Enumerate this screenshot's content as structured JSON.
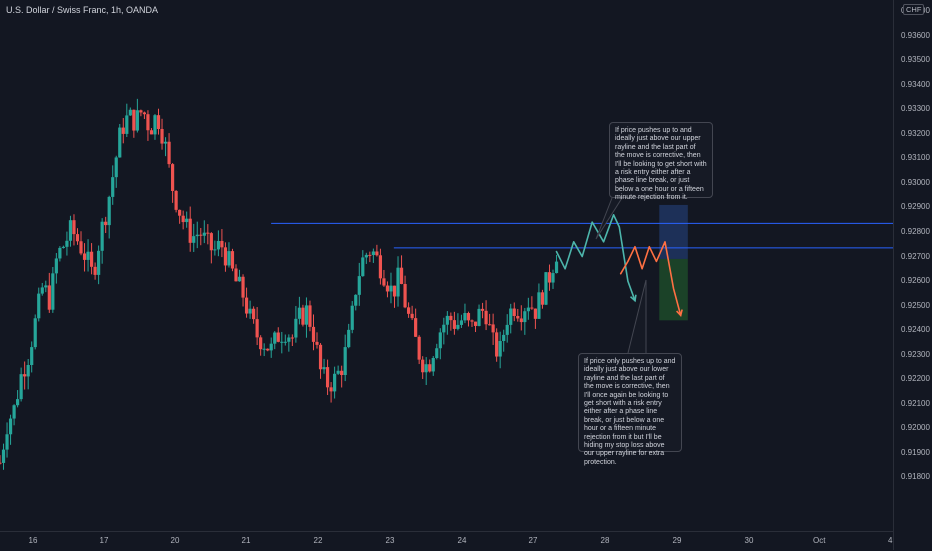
{
  "header": {
    "symbol_title": "U.S. Dollar / Swiss Franc, 1h, OANDA",
    "currency": "CHF"
  },
  "price_axis": {
    "labels": [
      "0.93700",
      "0.93600",
      "0.93500",
      "0.93400",
      "0.93300",
      "0.93200",
      "0.93100",
      "0.93000",
      "0.92900",
      "0.92800",
      "0.92700",
      "0.92600",
      "0.92500",
      "0.92400",
      "0.92300",
      "0.92200",
      "0.92100",
      "0.92000",
      "0.91900",
      "0.91800"
    ]
  },
  "time_axis": {
    "labels": [
      "16",
      "17",
      "20",
      "21",
      "22",
      "23",
      "24",
      "27",
      "28",
      "29",
      "30",
      "Oct",
      "4"
    ]
  },
  "annotations": {
    "upper_scenario": "If price pushes up to and ideally just above our upper rayline and the last part of the move is corrective, then I'll be looking to get short with a risk entry either after a phase line break, or just below a one hour or a fifteen minute rejection from it.",
    "lower_scenario": "If price only pushes up to and ideally just above our lower rayline and the last part of the move is corrective, then I'll once again be looking to get short with a risk entry either after a phase line break, or just below a one hour or a fifteen minute rejection from it but I'll be hiding my stop loss above our upper rayline for extra protection."
  },
  "colors": {
    "background": "#131722",
    "up_candle": "#26a69a",
    "down_candle": "#ef5350",
    "rayline": "#2962ff",
    "projection_upper": "#4db6ac",
    "projection_lower": "#ff7043",
    "stop_zone": "#223a6b",
    "target_zone": "#1e4d2b"
  },
  "chart_data": {
    "type": "candlestick",
    "title": "U.S. Dollar / Swiss Franc, 1h, OANDA",
    "xlabel": "",
    "ylabel": "",
    "ylim": [
      0.9175,
      0.9373
    ],
    "close_path": [
      [
        0,
        0.9186
      ],
      [
        0.5,
        0.9202
      ],
      [
        1.0,
        0.9208
      ],
      [
        1.5,
        0.9222
      ],
      [
        2.0,
        0.923
      ],
      [
        2.5,
        0.9244
      ],
      [
        3.0,
        0.9258
      ],
      [
        3.5,
        0.9252
      ],
      [
        4.0,
        0.927
      ],
      [
        4.5,
        0.9275
      ],
      [
        5.0,
        0.9281
      ],
      [
        5.5,
        0.9276
      ],
      [
        6.0,
        0.927
      ],
      [
        6.5,
        0.9262
      ],
      [
        7.0,
        0.9278
      ],
      [
        7.5,
        0.929
      ],
      [
        8.0,
        0.9306
      ],
      [
        8.5,
        0.9322
      ],
      [
        9.0,
        0.9327
      ],
      [
        9.5,
        0.9325
      ],
      [
        10.0,
        0.933
      ],
      [
        10.5,
        0.9322
      ],
      [
        11.0,
        0.9328
      ],
      [
        11.5,
        0.9318
      ],
      [
        12.0,
        0.93
      ],
      [
        12.5,
        0.929
      ],
      [
        13.0,
        0.9282
      ],
      [
        13.5,
        0.9278
      ],
      [
        14.0,
        0.928
      ],
      [
        14.5,
        0.9275
      ],
      [
        15.0,
        0.9272
      ],
      [
        15.5,
        0.9275
      ],
      [
        16.0,
        0.9268
      ],
      [
        16.5,
        0.926
      ],
      [
        17.0,
        0.9255
      ],
      [
        17.5,
        0.9245
      ],
      [
        18.0,
        0.9238
      ],
      [
        18.5,
        0.9235
      ],
      [
        19.0,
        0.9232
      ],
      [
        19.5,
        0.9238
      ],
      [
        20.0,
        0.924
      ],
      [
        20.5,
        0.9237
      ],
      [
        21.0,
        0.9245
      ],
      [
        21.5,
        0.9248
      ],
      [
        22.0,
        0.9238
      ],
      [
        22.5,
        0.9222
      ],
      [
        23.0,
        0.9218
      ],
      [
        23.5,
        0.922
      ],
      [
        24.0,
        0.9226
      ],
      [
        24.5,
        0.9238
      ],
      [
        25.0,
        0.926
      ],
      [
        25.5,
        0.927
      ],
      [
        26.0,
        0.9273
      ],
      [
        26.5,
        0.9268
      ],
      [
        27.0,
        0.9262
      ],
      [
        27.5,
        0.9255
      ],
      [
        28.0,
        0.9262
      ],
      [
        28.5,
        0.9248
      ],
      [
        29.0,
        0.9238
      ],
      [
        29.5,
        0.9228
      ],
      [
        30.0,
        0.9225
      ],
      [
        30.5,
        0.9235
      ],
      [
        31.0,
        0.9242
      ],
      [
        31.5,
        0.9245
      ],
      [
        32.0,
        0.9242
      ],
      [
        32.5,
        0.9245
      ],
      [
        33.0,
        0.924
      ],
      [
        33.5,
        0.9246
      ],
      [
        34.0,
        0.9249
      ],
      [
        34.5,
        0.9235
      ],
      [
        35.0,
        0.923
      ],
      [
        35.5,
        0.9245
      ],
      [
        36.0,
        0.925
      ],
      [
        36.5,
        0.9248
      ],
      [
        37.0,
        0.9252
      ],
      [
        37.5,
        0.9248
      ],
      [
        38.0,
        0.9255
      ],
      [
        38.5,
        0.9262
      ],
      [
        39.0,
        0.9272
      ]
    ],
    "raylines": [
      {
        "price": 0.92835,
        "start_x": 19.0
      },
      {
        "price": 0.92735,
        "start_x": 27.6
      }
    ],
    "projection_upper": [
      [
        39.0,
        0.9272
      ],
      [
        39.6,
        0.9265
      ],
      [
        40.2,
        0.9276
      ],
      [
        40.8,
        0.927
      ],
      [
        41.5,
        0.9284
      ],
      [
        42.3,
        0.9276
      ],
      [
        43.0,
        0.9287
      ],
      [
        43.4,
        0.9282
      ],
      [
        44.0,
        0.926
      ],
      [
        44.5,
        0.9252
      ]
    ],
    "projection_lower": [
      [
        43.5,
        0.9263
      ],
      [
        44.0,
        0.9268
      ],
      [
        44.5,
        0.9274
      ],
      [
        45.0,
        0.9265
      ],
      [
        45.5,
        0.9274
      ],
      [
        46.0,
        0.9268
      ],
      [
        46.6,
        0.9276
      ],
      [
        47.2,
        0.9257
      ],
      [
        47.7,
        0.9246
      ]
    ],
    "stop_zone": {
      "x_start": 46.2,
      "x_end": 48.2,
      "top": 0.9291,
      "bottom": 0.9269
    },
    "target_zone": {
      "x_start": 46.2,
      "x_end": 48.2,
      "top": 0.9269,
      "bottom": 0.9244
    }
  }
}
